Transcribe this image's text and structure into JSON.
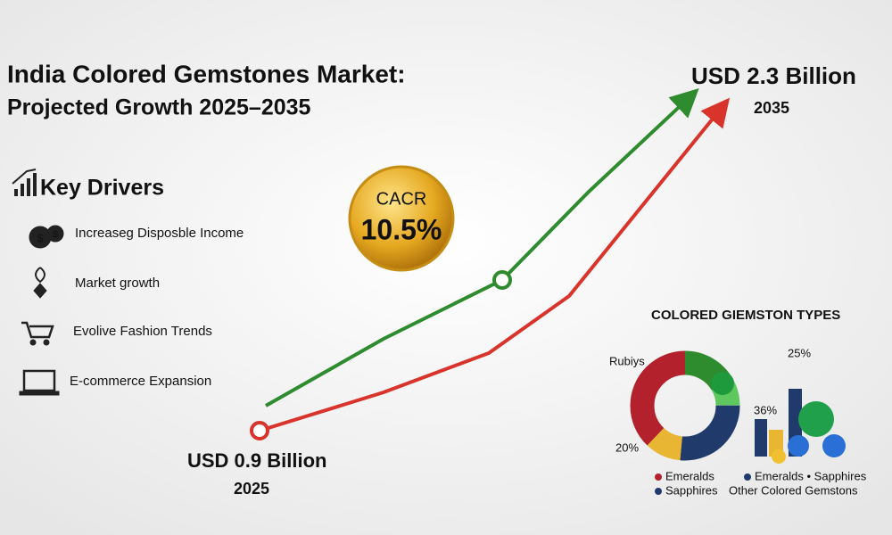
{
  "title": {
    "line1": "India Colored Gemstones Market:",
    "line2": "Projected Growth 2025–2035"
  },
  "key_drivers": {
    "heading": "Key Drivers",
    "items": [
      "Increaseg Disposble Income",
      "Market growth",
      "Evolive Fashion Trends",
      "E-commerce Expansion"
    ]
  },
  "badge": {
    "label": "CACR",
    "value": "10.5%"
  },
  "start": {
    "amount": "USD 0.9 Billion",
    "year": "2025"
  },
  "end": {
    "amount": "USD 2.3 Billion",
    "year": "2035"
  },
  "types": {
    "title": "COLORED GIEMSTON TYPES",
    "labels": [
      "Rubiys",
      "20%",
      "36%",
      "25%"
    ],
    "legend": [
      "Emeralds",
      "Sapphires",
      "Emeralds • Sapphires",
      "Other Colored Gemstons"
    ]
  }
}
